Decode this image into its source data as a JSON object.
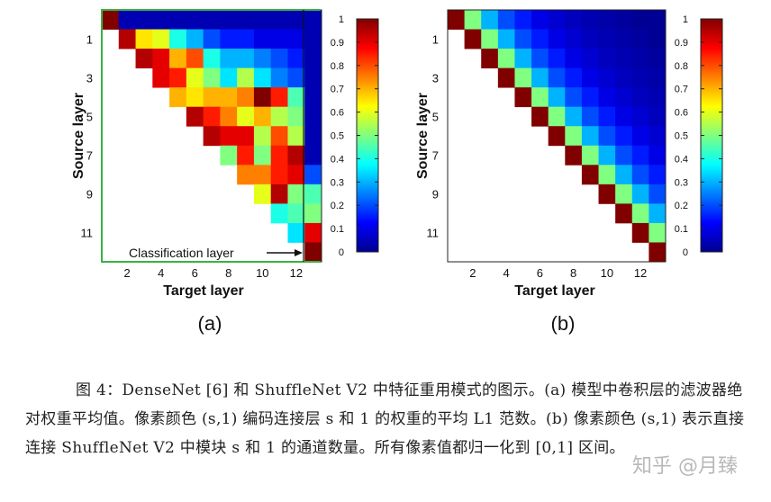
{
  "chart_data": [
    {
      "type": "heatmap",
      "panel_label": "(a)",
      "ylabel": "Source layer",
      "xlabel": "Target layer",
      "y_ticks": [
        "1",
        "3",
        "5",
        "7",
        "9",
        "11"
      ],
      "x_ticks": [
        "2",
        "4",
        "6",
        "8",
        "10",
        "12"
      ],
      "annotation": "Classification layer",
      "colorbar_ticks": [
        "0",
        "0.1",
        "0.2",
        "0.3",
        "0.4",
        "0.5",
        "0.6",
        "0.7",
        "0.8",
        "0.9",
        "1"
      ],
      "colormap": "jet",
      "source_rows": [
        "0",
        "1",
        "2",
        "3",
        "4",
        "5",
        "6",
        "7",
        "8",
        "9",
        "10",
        "11",
        "12"
      ],
      "target_cols": [
        "1",
        "2",
        "3",
        "4",
        "5",
        "6",
        "7",
        "8",
        "9",
        "10",
        "11",
        "12",
        "13"
      ],
      "values": [
        [
          1.0,
          0.05,
          0.05,
          0.05,
          0.05,
          0.05,
          0.05,
          0.05,
          0.05,
          0.05,
          0.05,
          0.05,
          0.05
        ],
        [
          null,
          0.95,
          0.65,
          0.6,
          0.4,
          0.3,
          0.2,
          0.15,
          0.15,
          0.1,
          0.1,
          0.1,
          0.05
        ],
        [
          null,
          null,
          0.95,
          0.9,
          0.7,
          0.8,
          0.4,
          0.3,
          0.3,
          0.25,
          0.2,
          0.15,
          0.05
        ],
        [
          null,
          null,
          null,
          0.9,
          0.85,
          0.6,
          0.5,
          0.35,
          0.55,
          0.35,
          0.25,
          0.2,
          0.05
        ],
        [
          null,
          null,
          null,
          null,
          0.7,
          0.65,
          0.7,
          0.7,
          0.75,
          1.0,
          0.85,
          0.45,
          0.05
        ],
        [
          null,
          null,
          null,
          null,
          null,
          0.95,
          0.85,
          0.75,
          0.6,
          0.7,
          0.55,
          0.5,
          0.05
        ],
        [
          null,
          null,
          null,
          null,
          null,
          null,
          0.95,
          0.9,
          0.9,
          0.55,
          0.8,
          0.55,
          0.05
        ],
        [
          null,
          null,
          null,
          null,
          null,
          null,
          null,
          0.5,
          0.85,
          0.5,
          0.85,
          0.95,
          0.05
        ],
        [
          null,
          null,
          null,
          null,
          null,
          null,
          null,
          null,
          0.75,
          0.75,
          0.85,
          0.9,
          0.2
        ],
        [
          null,
          null,
          null,
          null,
          null,
          null,
          null,
          null,
          null,
          0.6,
          0.95,
          0.5,
          0.45
        ],
        [
          null,
          null,
          null,
          null,
          null,
          null,
          null,
          null,
          null,
          null,
          0.4,
          0.45,
          0.5
        ],
        [
          null,
          null,
          null,
          null,
          null,
          null,
          null,
          null,
          null,
          null,
          null,
          0.35,
          0.9
        ],
        [
          null,
          null,
          null,
          null,
          null,
          null,
          null,
          null,
          null,
          null,
          null,
          null,
          1.0
        ]
      ]
    },
    {
      "type": "heatmap",
      "panel_label": "(b)",
      "ylabel": "Source layer",
      "xlabel": "Target layer",
      "y_ticks": [
        "1",
        "3",
        "5",
        "7",
        "9",
        "11"
      ],
      "x_ticks": [
        "2",
        "4",
        "6",
        "8",
        "10",
        "12"
      ],
      "colorbar_ticks": [
        "0",
        "0.1",
        "0.2",
        "0.3",
        "0.4",
        "0.5",
        "0.6",
        "0.7",
        "0.8",
        "0.9",
        "1"
      ],
      "colormap": "jet",
      "source_rows": [
        "0",
        "1",
        "2",
        "3",
        "4",
        "5",
        "6",
        "7",
        "8",
        "9",
        "10",
        "11",
        "12"
      ],
      "target_cols": [
        "1",
        "2",
        "3",
        "4",
        "5",
        "6",
        "7",
        "8",
        "9",
        "10",
        "11",
        "12",
        "13"
      ],
      "values": [
        [
          1.0,
          0.5,
          0.3,
          0.2,
          0.15,
          0.1,
          0.08,
          0.06,
          0.05,
          0.04,
          0.03,
          0.02,
          0.02
        ],
        [
          null,
          1.0,
          0.5,
          0.3,
          0.2,
          0.15,
          0.1,
          0.08,
          0.06,
          0.05,
          0.04,
          0.03,
          0.02
        ],
        [
          null,
          null,
          1.0,
          0.5,
          0.3,
          0.2,
          0.15,
          0.1,
          0.08,
          0.06,
          0.05,
          0.04,
          0.03
        ],
        [
          null,
          null,
          null,
          1.0,
          0.5,
          0.3,
          0.2,
          0.15,
          0.1,
          0.08,
          0.06,
          0.05,
          0.04
        ],
        [
          null,
          null,
          null,
          null,
          1.0,
          0.5,
          0.3,
          0.2,
          0.15,
          0.1,
          0.08,
          0.06,
          0.05
        ],
        [
          null,
          null,
          null,
          null,
          null,
          1.0,
          0.5,
          0.3,
          0.2,
          0.15,
          0.1,
          0.08,
          0.06
        ],
        [
          null,
          null,
          null,
          null,
          null,
          null,
          1.0,
          0.5,
          0.3,
          0.2,
          0.15,
          0.1,
          0.08
        ],
        [
          null,
          null,
          null,
          null,
          null,
          null,
          null,
          1.0,
          0.5,
          0.3,
          0.2,
          0.15,
          0.1
        ],
        [
          null,
          null,
          null,
          null,
          null,
          null,
          null,
          null,
          1.0,
          0.5,
          0.3,
          0.2,
          0.15
        ],
        [
          null,
          null,
          null,
          null,
          null,
          null,
          null,
          null,
          null,
          1.0,
          0.5,
          0.3,
          0.2
        ],
        [
          null,
          null,
          null,
          null,
          null,
          null,
          null,
          null,
          null,
          null,
          1.0,
          0.5,
          0.3
        ],
        [
          null,
          null,
          null,
          null,
          null,
          null,
          null,
          null,
          null,
          null,
          null,
          1.0,
          0.5
        ],
        [
          null,
          null,
          null,
          null,
          null,
          null,
          null,
          null,
          null,
          null,
          null,
          null,
          1.0
        ]
      ]
    }
  ],
  "caption": "图 4：DenseNet [6] 和 ShuffleNet V2 中特征重用模式的图示。(a) 模型中卷积层的滤波器绝对权重平均值。像素颜色 (s,1) 编码连接层 s 和 1 的权重的平均 L1 范数。(b) 像素颜色 (s,1) 表示直接连接 ShuffleNet V2 中模块 s 和 1 的通道数量。所有像素值都归一化到 [0,1] 区间。",
  "watermark": "知乎 @月臻"
}
